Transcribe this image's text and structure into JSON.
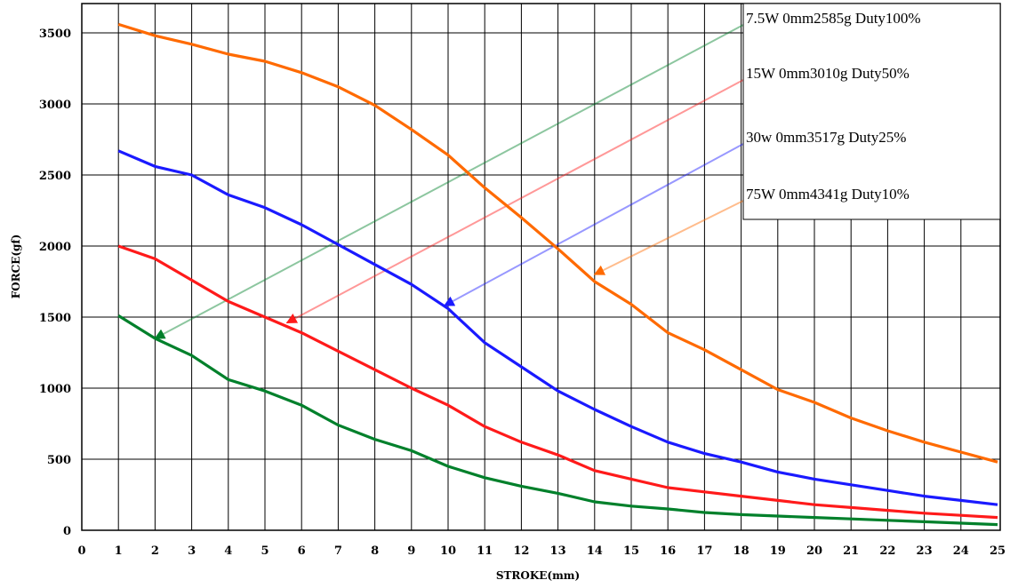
{
  "chart_data": {
    "type": "line",
    "xlabel": "STROKE(mm)",
    "ylabel": "FORCE(gf)",
    "xlim": [
      0,
      25
    ],
    "ylim": [
      0,
      3600
    ],
    "x_ticks": [
      "0",
      "1",
      "2",
      "3",
      "4",
      "5",
      "6",
      "7",
      "8",
      "9",
      "10",
      "11",
      "12",
      "13",
      "14",
      "15",
      "16",
      "17",
      "18",
      "19",
      "20",
      "21",
      "22",
      "23",
      "24",
      "25"
    ],
    "y_ticks": [
      "0",
      "500",
      "1000",
      "1500",
      "2000",
      "2500",
      "3000",
      "3500"
    ],
    "grid": true,
    "legend_position": "top-right",
    "x": [
      1,
      2,
      3,
      4,
      5,
      6,
      7,
      8,
      9,
      10,
      11,
      12,
      13,
      14,
      15,
      16,
      17,
      18,
      19,
      20,
      21,
      22,
      23,
      24,
      25
    ],
    "series": [
      {
        "name": "7.5W 0mm2585g Duty100%",
        "color": "#00802b",
        "arrow_target": [
          2,
          1350
        ],
        "values": [
          1510,
          1350,
          1230,
          1060,
          980,
          880,
          740,
          640,
          560,
          450,
          370,
          310,
          260,
          200,
          170,
          150,
          125,
          110,
          100,
          90,
          80,
          70,
          60,
          50,
          40
        ]
      },
      {
        "name": "15W 0mm3010g  Duty50%",
        "color": "#ff1a1a",
        "arrow_target": [
          5.6,
          1460
        ],
        "values": [
          2000,
          1910,
          1760,
          1610,
          1500,
          1390,
          1260,
          1130,
          1000,
          880,
          730,
          620,
          530,
          420,
          360,
          300,
          270,
          240,
          210,
          180,
          160,
          140,
          120,
          105,
          90
        ]
      },
      {
        "name": "30w 0mm3517g   Duty25%",
        "color": "#1a1aff",
        "arrow_target": [
          9.9,
          1580
        ],
        "values": [
          2670,
          2560,
          2500,
          2360,
          2270,
          2150,
          2010,
          1870,
          1730,
          1560,
          1320,
          1150,
          980,
          850,
          730,
          620,
          540,
          480,
          410,
          360,
          320,
          280,
          240,
          210,
          180
        ]
      },
      {
        "name": "75W 0mm4341g  Duty10%",
        "color": "#ff6a00",
        "arrow_target": [
          14,
          1800
        ],
        "values": [
          3560,
          3480,
          3420,
          3350,
          3300,
          3220,
          3120,
          2990,
          2820,
          2640,
          2410,
          2200,
          1980,
          1750,
          1590,
          1390,
          1270,
          1130,
          990,
          900,
          790,
          700,
          620,
          550,
          480
        ]
      }
    ]
  }
}
